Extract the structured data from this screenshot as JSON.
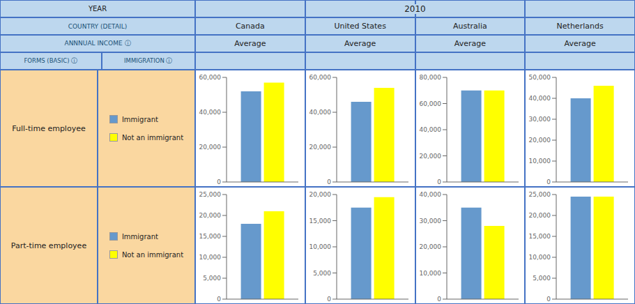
{
  "chart_data": [
    {
      "type": "bar",
      "title": "Canada",
      "subtitle": "Average",
      "ylabel": "Full-time employee",
      "legend": "left",
      "annotations": [
        "YEAR",
        "2010",
        "COUNTRY (DETAIL)",
        "ANNNUAL INCOME ⓘ",
        "FORMS (BASIC) ⓘ",
        "IMMIGRATION ⓘ"
      ],
      "tick_labels": "y",
      "categories": [
        null
      ],
      "series": [
        {
          "name": "Immigrant",
          "color": "#6699CC",
          "values": [
            52000
          ]
        },
        {
          "name": "Not an immigrant",
          "color": "#FFFF00",
          "values": [
            57000
          ]
        }
      ],
      "ylim": [
        0,
        60000
      ],
      "yticks": [
        0,
        {
          "value": 20000,
          "label": "20,000"
        },
        {
          "value": 40000,
          "label": "40,000"
        },
        {
          "value": 60000,
          "label": "60,000"
        }
      ]
    },
    {
      "type": "bar",
      "title": "United States",
      "subtitle": "Average",
      "tick_labels": "y",
      "categories": [
        null
      ],
      "series": [
        {
          "name": "Immigrant",
          "color": "#6699CC",
          "values": [
            46000
          ]
        },
        {
          "name": "Not an immigrant",
          "color": "#FFFF00",
          "values": [
            54000
          ]
        }
      ],
      "ylim": [
        0,
        60000
      ],
      "yticks": [
        0,
        {
          "value": 20000,
          "label": "20,000"
        },
        {
          "value": 40000,
          "label": "40,000"
        },
        {
          "value": 60000,
          "label": "60,000"
        }
      ]
    },
    {
      "type": "bar",
      "title": "Australia",
      "subtitle": "Average",
      "tick_labels": "y",
      "categories": [
        null
      ],
      "series": [
        {
          "name": "Immigrant",
          "color": "#6699CC",
          "values": [
            70000
          ]
        },
        {
          "name": "Not an immigrant",
          "color": "#FFFF00",
          "values": [
            70000
          ]
        }
      ],
      "ylim": [
        0,
        80000
      ],
      "yticks": [
        0,
        {
          "value": 20000,
          "label": "20,000"
        },
        {
          "value": 40000,
          "label": "40,000"
        },
        {
          "value": 60000,
          "label": "60,000"
        },
        {
          "value": 80000,
          "label": "80,000"
        }
      ]
    },
    {
      "type": "bar",
      "title": "Netherlands",
      "subtitle": "Average",
      "tick_labels": "y",
      "categories": [
        null
      ],
      "series": [
        {
          "name": "Immigrant",
          "color": "#6699CC",
          "values": [
            40000
          ]
        },
        {
          "name": "Not an immigrant",
          "color": "#FFFF00",
          "values": [
            46000
          ]
        }
      ],
      "ylim": [
        0,
        50000
      ],
      "yticks": [
        0,
        {
          "value": 10000,
          "label": "10,000"
        },
        {
          "value": 20000,
          "label": "20,000"
        },
        {
          "value": 30000,
          "label": "30,000"
        },
        {
          "value": 40000,
          "label": "40,000"
        },
        {
          "value": 50000,
          "label": "50,000"
        }
      ]
    },
    {
      "type": "bar",
      "ylabel": "Part-time employee",
      "legend": "left",
      "tick_labels": "y",
      "categories": [
        null
      ],
      "series": [
        {
          "name": "Immigrant",
          "color": "#6699CC",
          "values": [
            18000
          ]
        },
        {
          "name": "Not an immigrant",
          "color": "#FFFF00",
          "values": [
            21000
          ]
        }
      ],
      "ylim": [
        0,
        25000
      ],
      "yticks": [
        0,
        {
          "value": 5000,
          "label": "5,000"
        },
        {
          "value": 10000,
          "label": "10,000"
        },
        {
          "value": 15000,
          "label": "15,000"
        },
        {
          "value": 20000,
          "label": "20,000"
        },
        {
          "value": 25000,
          "label": "25,000"
        }
      ]
    },
    {
      "type": "bar",
      "tick_labels": "y",
      "categories": [
        null
      ],
      "series": [
        {
          "name": "Immigrant",
          "color": "#6699CC",
          "values": [
            17500
          ]
        },
        {
          "name": "Not an immigrant",
          "color": "#FFFF00",
          "values": [
            19500
          ]
        }
      ],
      "ylim": [
        0,
        20000
      ],
      "yticks": [
        0,
        {
          "value": 5000,
          "label": "5,000"
        },
        {
          "value": 10000,
          "label": "10,000"
        },
        {
          "value": 15000,
          "label": "15,000"
        },
        {
          "value": 20000,
          "label": "20,000"
        }
      ]
    },
    {
      "type": "bar",
      "tick_labels": "y",
      "categories": [
        null
      ],
      "series": [
        {
          "name": "Immigrant",
          "color": "#6699CC",
          "values": [
            35000
          ]
        },
        {
          "name": "Not an immigrant",
          "color": "#FFFF00",
          "values": [
            28000
          ]
        }
      ],
      "ylim": [
        0,
        40000
      ],
      "yticks": [
        0,
        {
          "value": 10000,
          "label": "10,000"
        },
        {
          "value": 20000,
          "label": "20,000"
        },
        {
          "value": 30000,
          "label": "30,000"
        },
        {
          "value": 40000,
          "label": "40,000"
        }
      ]
    },
    {
      "type": "bar",
      "tick_labels": "y",
      "categories": [
        null
      ],
      "series": [
        {
          "name": "Immigrant",
          "color": "#6699CC",
          "values": [
            24500
          ]
        },
        {
          "name": "Not an immigrant",
          "color": "#FFFF00",
          "values": [
            24500
          ]
        }
      ],
      "ylim": [
        0,
        25000
      ],
      "yticks": [
        0,
        {
          "value": 5000,
          "label": "5,000"
        },
        {
          "value": 10000,
          "label": "10,000"
        },
        {
          "value": 15000,
          "label": "15,000"
        },
        {
          "value": 20000,
          "label": "20,000"
        },
        {
          "value": 25000,
          "label": "25,000"
        }
      ]
    }
  ]
}
